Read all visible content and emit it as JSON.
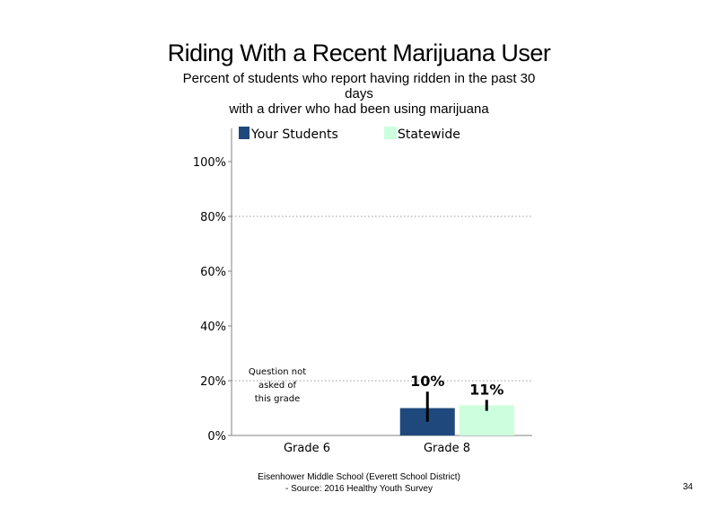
{
  "chart_data": {
    "type": "bar",
    "title": "Riding With a Recent Marijuana User",
    "subtitle_lines": [
      "Percent of students who report having ridden in the past 30",
      "days",
      "with a driver who had been using marijuana"
    ],
    "categories": [
      "Grade 6",
      "Grade 8"
    ],
    "series": [
      {
        "name": "Your Students",
        "color": "#1f497d",
        "values": [
          null,
          10
        ],
        "labels": [
          "",
          "10%"
        ],
        "error": [
          null,
          [
            5,
            16
          ]
        ]
      },
      {
        "name": "Statewide",
        "color": "#ccffdd",
        "values": [
          null,
          11
        ],
        "labels": [
          "",
          "11%"
        ],
        "error": [
          null,
          [
            9,
            13
          ]
        ]
      }
    ],
    "yticks": [
      "0%",
      "20%",
      "40%",
      "60%",
      "80%",
      "100%"
    ],
    "ylim": [
      0,
      100
    ],
    "gridlines": [
      20,
      80
    ],
    "annotation": "Question not asked of this grade",
    "annotation_lines": [
      "Question not",
      "asked of",
      "this grade"
    ],
    "legend_position": "top"
  },
  "footer": {
    "line1": "Eisenhower Middle School (Everett School District)",
    "line2": "- Source: 2016 Healthy Youth Survey"
  },
  "page_number": "34"
}
